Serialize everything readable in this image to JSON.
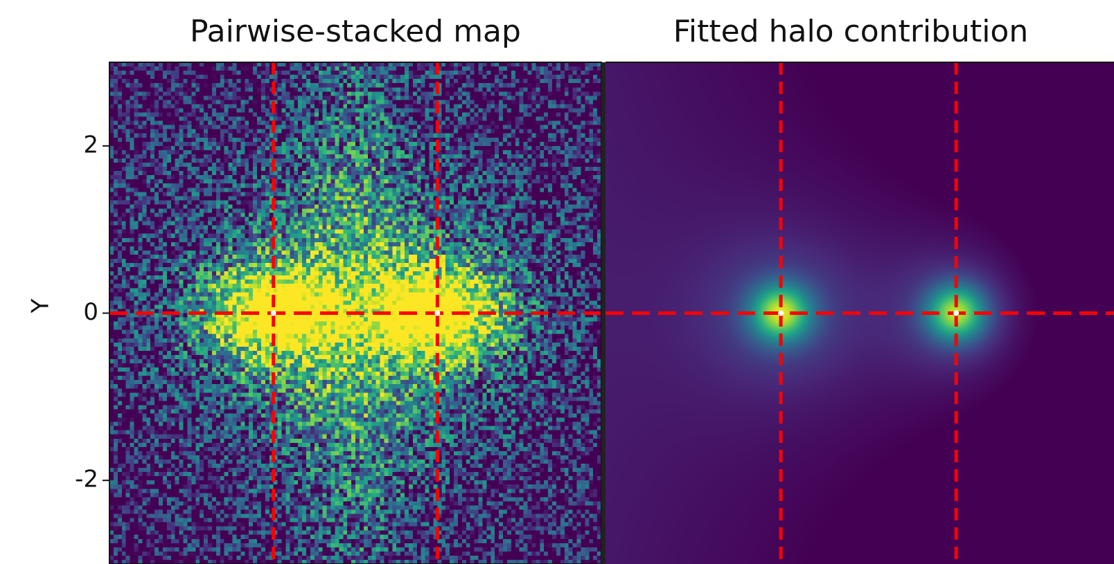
{
  "chart_data": [
    {
      "type": "heatmap",
      "title": "Pairwise-stacked map",
      "ylabel": "Y",
      "yticks": [
        2,
        0,
        -2
      ],
      "ytick_labels": [
        "2",
        "0",
        "-2"
      ],
      "ylim": [
        -3.0,
        3.0
      ],
      "xlim": [
        -3.0,
        3.0
      ],
      "colormap": "viridis",
      "grid": false,
      "halo_centers": [
        {
          "x": -1.0,
          "y": 0
        },
        {
          "x": 1.0,
          "y": 0
        }
      ],
      "reference_lines": {
        "vertical_x": [
          -1.0,
          1.0
        ],
        "horizontal_y": [
          0
        ],
        "color": "#ff0000",
        "style": "dashed"
      }
    },
    {
      "type": "heatmap",
      "title": "Fitted halo contribution",
      "ylim": [
        -3.0,
        3.0
      ],
      "xlim": [
        -3.0,
        2.8
      ],
      "colormap": "viridis",
      "grid": false,
      "halo_centers": [
        {
          "x": -1.0,
          "y": 0
        },
        {
          "x": 1.0,
          "y": 0
        }
      ],
      "reference_lines": {
        "vertical_x": [
          -1.0,
          1.0
        ],
        "horizontal_y": [
          0
        ],
        "color": "#ff0000",
        "style": "dashed"
      }
    }
  ]
}
